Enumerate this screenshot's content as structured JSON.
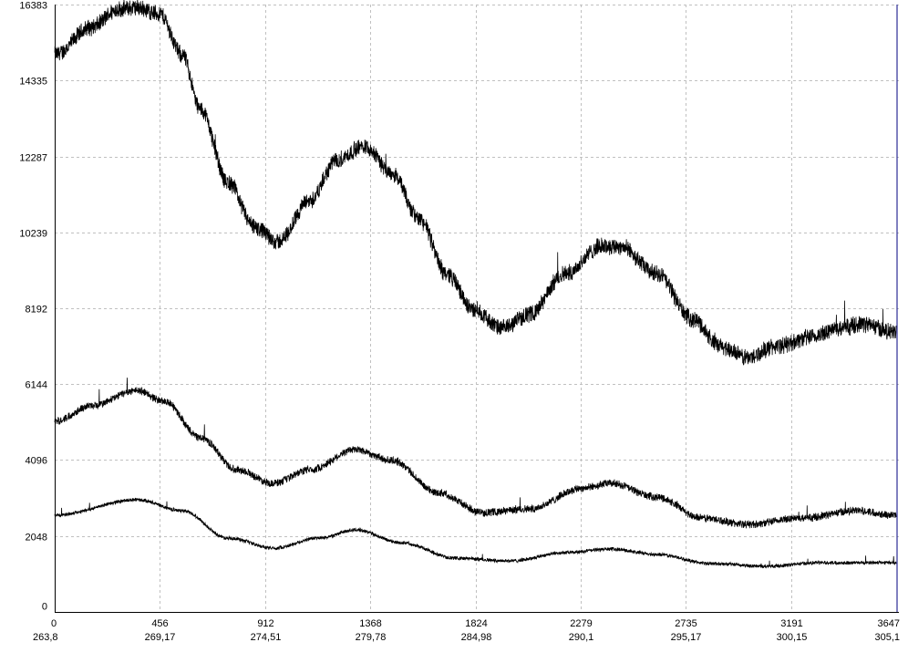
{
  "chart_data": {
    "type": "line",
    "title": "",
    "xlabel": "",
    "ylabel": "",
    "xlim": [
      0,
      3647
    ],
    "ylim": [
      0,
      16383
    ],
    "grid": true,
    "x_ticks": [
      "0",
      "456",
      "912",
      "1368",
      "1824",
      "2279",
      "2735",
      "3191",
      "3647"
    ],
    "x_ticks_secondary": [
      "263,8",
      "269,17",
      "274,51",
      "279,78",
      "284,98",
      "290,1",
      "295,17",
      "300,15",
      "305,1"
    ],
    "y_ticks": [
      "0",
      "2048",
      "4096",
      "6144",
      "8192",
      "10239",
      "12287",
      "14335",
      "16383"
    ],
    "colors": {
      "line": "#000000",
      "grid": "#c0c0c0",
      "marker": "#000080"
    },
    "series": [
      {
        "x": [
          0,
          158,
          277,
          356,
          454,
          553,
          632,
          751,
          869,
          968,
          1106,
          1225,
          1343,
          1462,
          1580,
          1699,
          1817,
          1936,
          2055,
          2213,
          2371,
          2450,
          2608,
          2766,
          2884,
          3003,
          3121,
          3279,
          3398,
          3497,
          3647
        ],
        "y": [
          15031,
          15769,
          16261,
          16300,
          16138,
          15031,
          13555,
          11587,
          10357,
          9988,
          11095,
          12202,
          12571,
          11833,
          10603,
          9127,
          8143,
          7651,
          8020,
          9127,
          9865,
          9865,
          9127,
          7897,
          7159,
          6863,
          7159,
          7405,
          7651,
          7774,
          7528
        ]
      },
      {
        "x": [
          0,
          158,
          356,
          474,
          632,
          790,
          948,
          1106,
          1304,
          1462,
          1659,
          1857,
          2055,
          2292,
          2410,
          2608,
          2805,
          3003,
          3240,
          3477,
          3647
        ],
        "y": [
          5141,
          5560,
          5978,
          5683,
          4699,
          3838,
          3469,
          3838,
          4379,
          4084,
          3223,
          2681,
          2780,
          3346,
          3469,
          3100,
          2534,
          2362,
          2534,
          2731,
          2608
        ]
      },
      {
        "x": [
          0,
          356,
          553,
          751,
          948,
          1146,
          1304,
          1501,
          1738,
          1975,
          2213,
          2410,
          2608,
          2845,
          3082,
          3319,
          3647
        ],
        "y": [
          2608,
          3026,
          2731,
          1993,
          1722,
          1993,
          2214,
          1870,
          1451,
          1378,
          1599,
          1697,
          1550,
          1304,
          1230,
          1328,
          1328
        ]
      }
    ]
  }
}
